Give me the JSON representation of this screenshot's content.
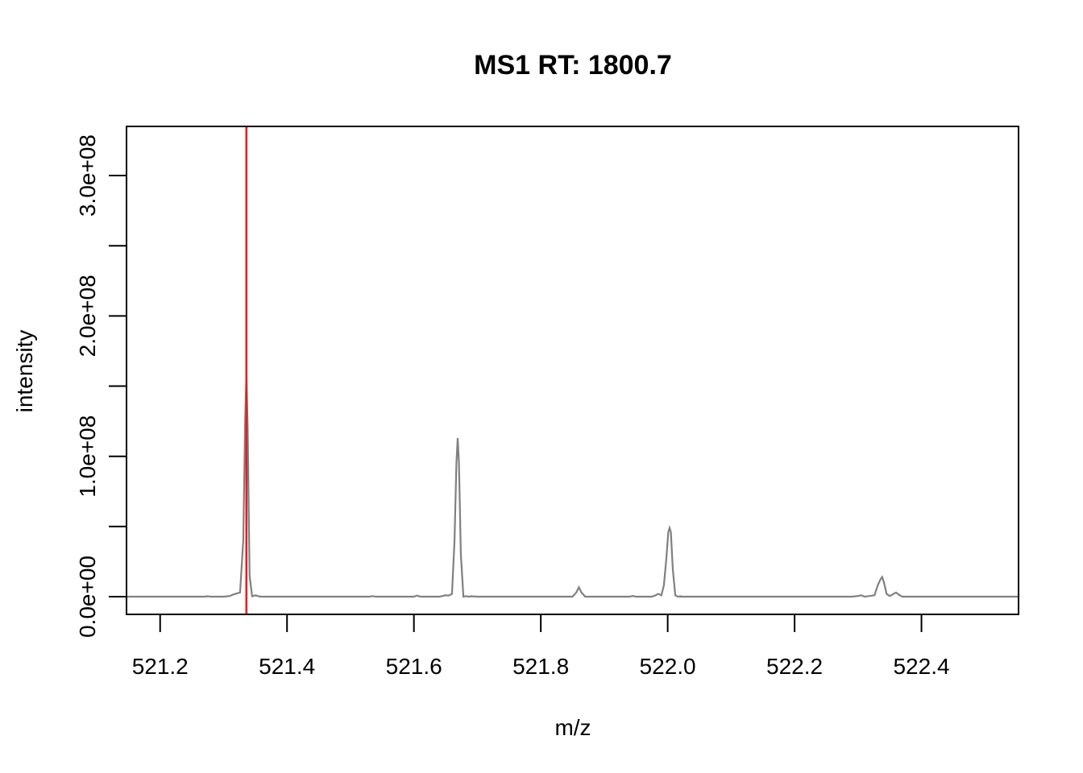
{
  "chart_data": {
    "type": "line",
    "title": "MS1 RT: 1800.7",
    "xlabel": "m/z",
    "ylabel": "intensity",
    "xlim": [
      521.147,
      522.553
    ],
    "ylim": [
      -12600000,
      335000000
    ],
    "x_ticks": [
      521.2,
      521.4,
      521.6,
      521.8,
      522.0,
      522.2,
      522.4
    ],
    "x_tick_labels": [
      "521.2",
      "521.4",
      "521.6",
      "521.8",
      "522.0",
      "522.2",
      "522.4"
    ],
    "y_ticks": [
      0,
      50000000,
      100000000,
      150000000,
      200000000,
      250000000,
      300000000
    ],
    "y_tick_labels": [
      "0.0e+00",
      "",
      "1.0e+08",
      "",
      "2.0e+08",
      "",
      "3.0e+08"
    ],
    "grid": false,
    "series": [
      {
        "color": "#808080",
        "x": [
          521.147,
          521.27,
          521.275,
          521.28,
          521.3,
          521.31,
          521.315,
          521.326,
          521.331,
          521.334,
          521.336,
          521.338,
          521.341,
          521.345,
          521.35,
          521.354,
          521.358,
          521.362,
          521.4,
          521.53,
          521.535,
          521.54,
          521.6,
          521.605,
          521.61,
          521.64,
          521.645,
          521.65,
          521.655,
          521.66,
          521.664,
          521.667,
          521.669,
          521.671,
          521.674,
          521.678,
          521.682,
          521.686,
          521.69,
          521.7,
          521.7,
          521.85,
          521.856,
          521.86,
          521.864,
          521.87,
          521.94,
          521.945,
          521.95,
          521.975,
          521.98,
          521.985,
          521.99,
          521.994,
          521.998,
          522.001,
          522.003,
          522.005,
          522.008,
          522.012,
          522.016,
          522.02,
          522.02,
          522.29,
          522.3,
          522.305,
          522.31,
          522.326,
          522.331,
          522.335,
          522.338,
          522.341,
          522.345,
          522.35,
          522.356,
          522.36,
          522.364,
          522.37,
          522.553
        ],
        "y": [
          0,
          0,
          300000,
          0,
          0,
          500000,
          1500000,
          3000000,
          40000000,
          125000000,
          158000000,
          120000000,
          15000000,
          300000,
          1000000,
          500000,
          0,
          0,
          0,
          0,
          400000,
          0,
          0,
          800000,
          0,
          0,
          500000,
          1000000,
          800000,
          2000000,
          40000000,
          95000000,
          113000000,
          95000000,
          30000000,
          0,
          400000,
          0,
          300000,
          0,
          0,
          0,
          3000000,
          6700000,
          3000000,
          0,
          0,
          500000,
          0,
          0,
          800000,
          2000000,
          1000000,
          8000000,
          28000000,
          46000000,
          49000000,
          46000000,
          20000000,
          1000000,
          0,
          300000,
          0,
          0,
          500000,
          1000000,
          0,
          1000000,
          8000000,
          12000000,
          14000000,
          10000000,
          2000000,
          500000,
          2000000,
          3000000,
          1500000,
          0,
          0
        ]
      }
    ],
    "markers": [
      {
        "type": "vline",
        "x": 521.336,
        "color": "#e02020"
      }
    ]
  }
}
